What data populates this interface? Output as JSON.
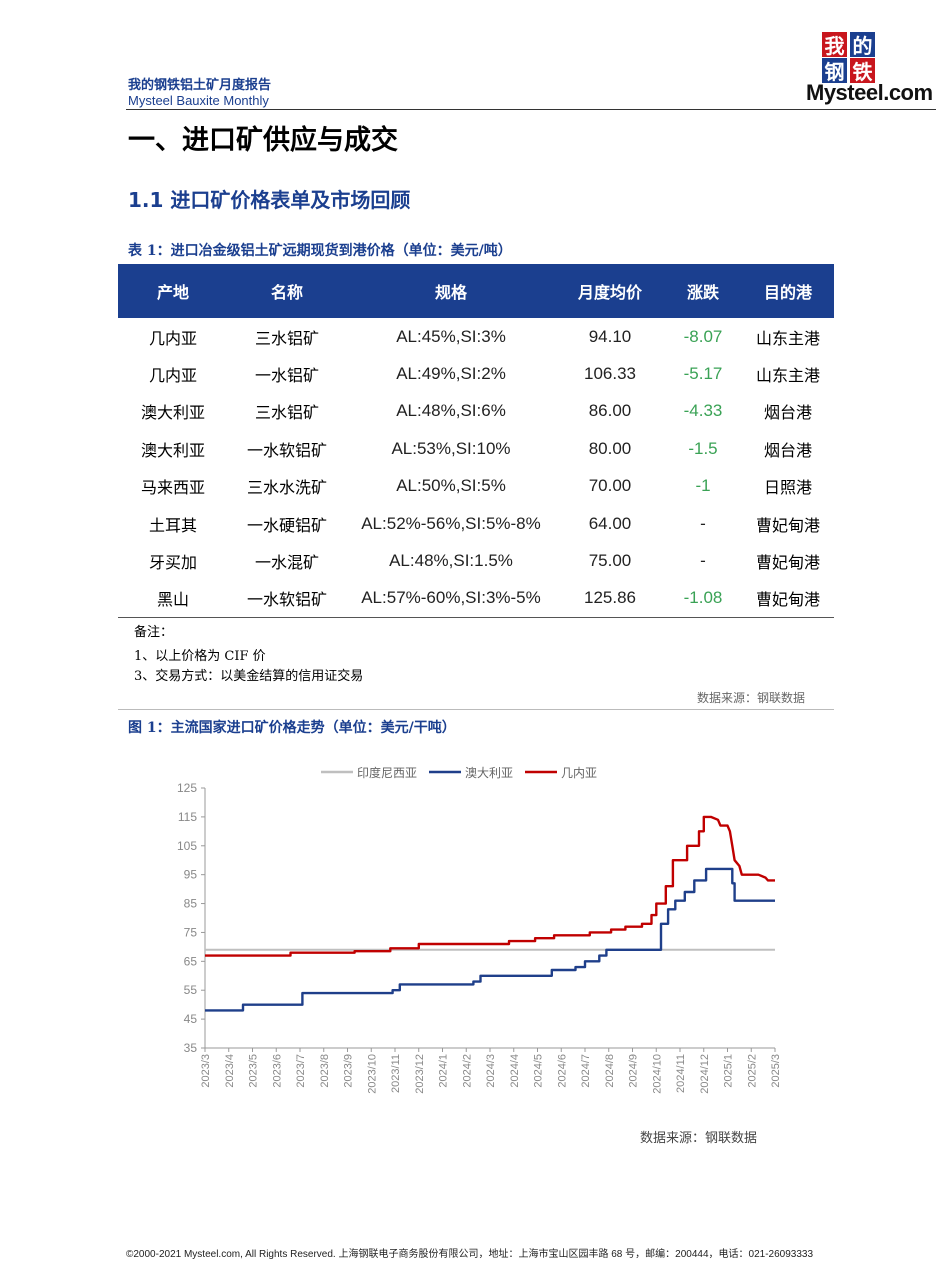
{
  "header": {
    "report_cn": "我的钢铁铝土矿月度报告",
    "report_en": "Mysteel Bauxite Monthly",
    "logo": {
      "chars": [
        "我",
        "的",
        "钢",
        "铁"
      ],
      "wordmark": "Mysteel.com"
    }
  },
  "section_title": "一、进口矿供应与成交",
  "subsection_title": "1.1  进口矿价格表单及市场回顾",
  "table1": {
    "caption": "表 1：进口冶金级铝土矿远期现货到港价格（单位：美元/吨）",
    "headers": [
      "产地",
      "名称",
      "规格",
      "月度均价",
      "涨跌",
      "目的港"
    ],
    "rows": [
      [
        "几内亚",
        "三水铝矿",
        "AL:45%,SI:3%",
        "94.10",
        "-8.07",
        "山东主港"
      ],
      [
        "几内亚",
        "一水铝矿",
        "AL:49%,SI:2%",
        "106.33",
        "-5.17",
        "山东主港"
      ],
      [
        "澳大利亚",
        "三水铝矿",
        "AL:48%,SI:6%",
        "86.00",
        "-4.33",
        "烟台港"
      ],
      [
        "澳大利亚",
        "一水软铝矿",
        "AL:53%,SI:10%",
        "80.00",
        "-1.5",
        "烟台港"
      ],
      [
        "马来西亚",
        "三水水洗矿",
        "AL:50%,SI:5%",
        "70.00",
        "-1",
        "日照港"
      ],
      [
        "土耳其",
        "一水硬铝矿",
        "AL:52%-56%,SI:5%-8%",
        "64.00",
        "-",
        "曹妃甸港"
      ],
      [
        "牙买加",
        "一水混矿",
        "AL:48%,SI:1.5%",
        "75.00",
        "-",
        "曹妃甸港"
      ],
      [
        "黑山",
        "一水软铝矿",
        "AL:57%-60%,SI:3%-5%",
        "125.86",
        "-1.08",
        "曹妃甸港"
      ]
    ],
    "notes": [
      "备注：",
      "1、以上价格为 CIF 价",
      "3、交易方式：以美金结算的信用证交易"
    ],
    "source": "数据来源：钢联数据"
  },
  "figure1": {
    "caption": "图 1：主流国家进口矿价格走势（单位：美元/干吨）",
    "source": "数据来源：钢联数据"
  },
  "chart_data": {
    "type": "line",
    "title": "",
    "xlabel": "",
    "ylabel": "",
    "ylim": [
      35,
      125
    ],
    "yticks": [
      35,
      45,
      55,
      65,
      75,
      85,
      95,
      105,
      115,
      125
    ],
    "grid": false,
    "legend_position": "top",
    "x_labels": [
      "2023/3",
      "2023/4",
      "2023/5",
      "2023/6",
      "2023/7",
      "2023/8",
      "2023/9",
      "2023/10",
      "2023/11",
      "2023/12",
      "2024/1",
      "2024/2",
      "2024/3",
      "2024/4",
      "2024/5",
      "2024/6",
      "2024/7",
      "2024/8",
      "2024/9",
      "2024/10",
      "2024/11",
      "2024/12",
      "2025/1",
      "2025/2",
      "2025/3"
    ],
    "series": [
      {
        "name": "印度尼西亚",
        "color": "#bfbfbf",
        "points": [
          [
            0,
            69
          ],
          [
            24,
            69
          ]
        ]
      },
      {
        "name": "澳大利亚",
        "color": "#1f3f8a",
        "points": [
          [
            0,
            48
          ],
          [
            1.6,
            48
          ],
          [
            1.6,
            50
          ],
          [
            4.1,
            50
          ],
          [
            4.1,
            54
          ],
          [
            7.9,
            54
          ],
          [
            7.9,
            55
          ],
          [
            8.2,
            55
          ],
          [
            8.2,
            57
          ],
          [
            11.3,
            57
          ],
          [
            11.3,
            58
          ],
          [
            11.6,
            58
          ],
          [
            11.6,
            60
          ],
          [
            14.6,
            60
          ],
          [
            14.6,
            62
          ],
          [
            15.6,
            62
          ],
          [
            15.6,
            63
          ],
          [
            16,
            63
          ],
          [
            16,
            65
          ],
          [
            16.6,
            65
          ],
          [
            16.6,
            67
          ],
          [
            16.9,
            67
          ],
          [
            16.9,
            69
          ],
          [
            19.2,
            69
          ],
          [
            19.2,
            78
          ],
          [
            19.5,
            78
          ],
          [
            19.5,
            83
          ],
          [
            19.8,
            83
          ],
          [
            19.8,
            86
          ],
          [
            20.2,
            86
          ],
          [
            20.2,
            89
          ],
          [
            20.6,
            89
          ],
          [
            20.6,
            93
          ],
          [
            21.1,
            93
          ],
          [
            21.1,
            97
          ],
          [
            22.2,
            97
          ],
          [
            22.2,
            92
          ],
          [
            22.3,
            92
          ],
          [
            22.3,
            86
          ],
          [
            24,
            86
          ]
        ]
      },
      {
        "name": "几内亚",
        "color": "#c00000",
        "points": [
          [
            0,
            67
          ],
          [
            3.6,
            67
          ],
          [
            3.6,
            68
          ],
          [
            6.3,
            68
          ],
          [
            6.3,
            68.5
          ],
          [
            7.8,
            68.5
          ],
          [
            7.8,
            69.5
          ],
          [
            9,
            69.5
          ],
          [
            9,
            71
          ],
          [
            12.8,
            71
          ],
          [
            12.8,
            72
          ],
          [
            13.9,
            72
          ],
          [
            13.9,
            73
          ],
          [
            14.7,
            73
          ],
          [
            14.7,
            74
          ],
          [
            16.2,
            74
          ],
          [
            16.2,
            75
          ],
          [
            17.1,
            75
          ],
          [
            17.1,
            76
          ],
          [
            17.7,
            76
          ],
          [
            17.7,
            77
          ],
          [
            18.4,
            77
          ],
          [
            18.4,
            78
          ],
          [
            18.8,
            78
          ],
          [
            18.8,
            81
          ],
          [
            19,
            81
          ],
          [
            19,
            85
          ],
          [
            19.4,
            85
          ],
          [
            19.4,
            91
          ],
          [
            19.7,
            91
          ],
          [
            19.7,
            100
          ],
          [
            20.3,
            100
          ],
          [
            20.3,
            105
          ],
          [
            20.8,
            105
          ],
          [
            20.8,
            110
          ],
          [
            21,
            110
          ],
          [
            21,
            115
          ],
          [
            21.3,
            115
          ],
          [
            21.6,
            114
          ],
          [
            21.7,
            112
          ],
          [
            22,
            112
          ],
          [
            22.1,
            110
          ],
          [
            22.2,
            105
          ],
          [
            22.3,
            100
          ],
          [
            22.5,
            98
          ],
          [
            22.6,
            95
          ],
          [
            23.3,
            95
          ],
          [
            23.6,
            94
          ],
          [
            23.7,
            93
          ],
          [
            24,
            93
          ]
        ]
      }
    ]
  },
  "footer": "©2000-2021 Mysteel.com, All Rights Reserved.  上海钢联电子商务股份有限公司，地址：上海市宝山区园丰路 68 号，邮编：200444，电话：021-26093333"
}
